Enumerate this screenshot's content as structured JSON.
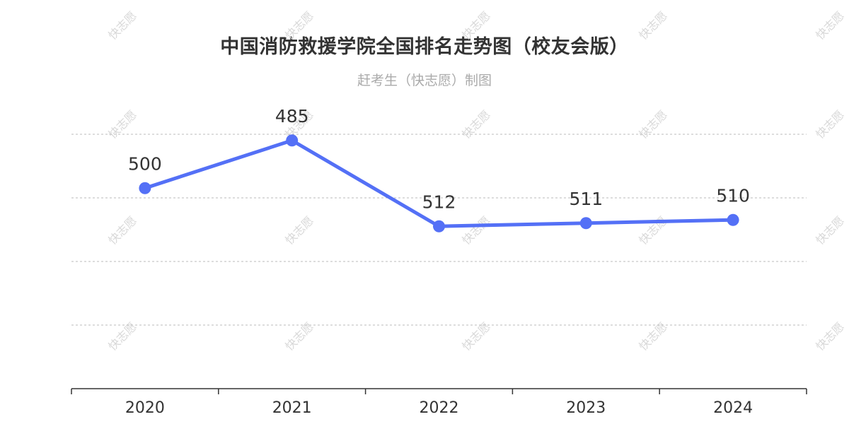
{
  "title": "中国消防救援学院全国排名走势图（校友会版）",
  "subtitle": "赶考生（快志愿）制图",
  "watermark_text": "快志愿",
  "chart_data": {
    "type": "line",
    "categories": [
      "2020",
      "2021",
      "2022",
      "2023",
      "2024"
    ],
    "series": [
      {
        "values": [
          500,
          485,
          512,
          511,
          510
        ]
      }
    ],
    "y_inverse": true,
    "ylim": [
      470,
      530
    ],
    "grid": true,
    "legend": "none",
    "line_color": "#5470f6",
    "grid_color": "#bbbbbb",
    "axis_color": "#333333"
  }
}
